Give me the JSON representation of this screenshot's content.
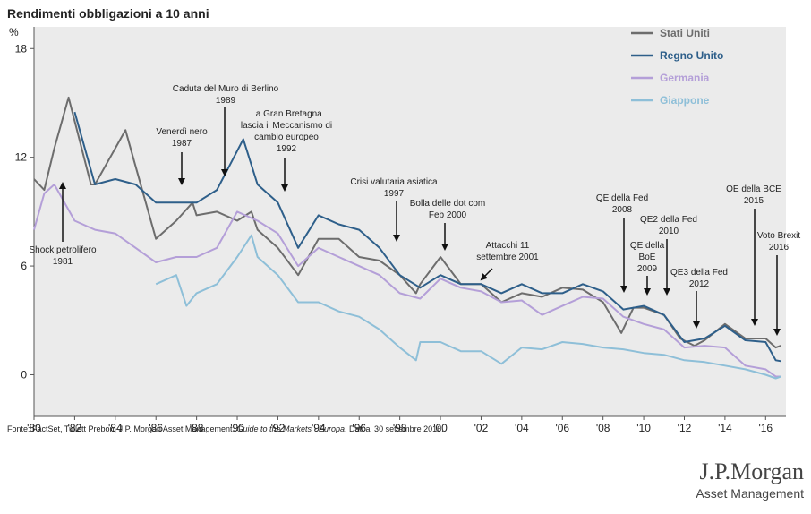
{
  "chart_data": {
    "type": "line",
    "title": "Rendimenti obbligazioni a 10 anni",
    "y_label": "%",
    "xlim": [
      1980,
      2017
    ],
    "ylim": [
      -2.3,
      19.2
    ],
    "yticks": [
      0,
      6,
      12,
      18
    ],
    "xticks": [
      {
        "value": 1980,
        "label": "'80"
      },
      {
        "value": 1982,
        "label": "'82"
      },
      {
        "value": 1984,
        "label": "'84"
      },
      {
        "value": 1986,
        "label": "'86"
      },
      {
        "value": 1988,
        "label": "'88"
      },
      {
        "value": 1990,
        "label": "'90"
      },
      {
        "value": 1992,
        "label": "'92"
      },
      {
        "value": 1994,
        "label": "'94"
      },
      {
        "value": 1996,
        "label": "'96"
      },
      {
        "value": 1998,
        "label": "'98"
      },
      {
        "value": 2000,
        "label": "'00"
      },
      {
        "value": 2002,
        "label": "'02"
      },
      {
        "value": 2004,
        "label": "'04"
      },
      {
        "value": 2006,
        "label": "'06"
      },
      {
        "value": 2008,
        "label": "'08"
      },
      {
        "value": 2010,
        "label": "'10"
      },
      {
        "value": 2012,
        "label": "'12"
      },
      {
        "value": 2014,
        "label": "'14"
      },
      {
        "value": 2016,
        "label": "'16"
      }
    ],
    "legend": "top-right",
    "series": [
      {
        "name": "Stati Uniti",
        "color": "#6d6d6d",
        "x": [
          1980,
          1980.5,
          1981,
          1981.7,
          1982,
          1982.8,
          1983,
          1984.5,
          1985,
          1986,
          1987,
          1987.8,
          1988,
          1989,
          1990,
          1990.7,
          1991,
          1992,
          1993,
          1994,
          1995,
          1996,
          1997,
          1998,
          1998.8,
          1999,
          2000,
          2001,
          2002,
          2003,
          2004,
          2005,
          2006,
          2007,
          2008,
          2008.9,
          2009.5,
          2010,
          2011,
          2011.8,
          2012.5,
          2013,
          2014,
          2015,
          2016,
          2016.5,
          2016.75
        ],
        "values": [
          10.8,
          10.2,
          12.5,
          15.3,
          14,
          10.5,
          10.5,
          13.5,
          11.5,
          7.5,
          8.5,
          9.5,
          8.8,
          9,
          8.5,
          9,
          8,
          7,
          5.5,
          7.5,
          7.5,
          6.5,
          6.3,
          5.5,
          4.5,
          5,
          6.5,
          5,
          5,
          4,
          4.5,
          4.3,
          4.8,
          4.7,
          4,
          2.3,
          3.7,
          3.7,
          3.3,
          2,
          1.6,
          1.9,
          2.8,
          2,
          2,
          1.5,
          1.6
        ]
      },
      {
        "name": "Regno Unito",
        "color": "#2e5f8a",
        "x": [
          1982,
          1983,
          1984,
          1985,
          1986,
          1987,
          1988,
          1989,
          1990.3,
          1991,
          1992,
          1993,
          1994,
          1995,
          1996,
          1997,
          1998,
          1999,
          2000,
          2001,
          2002,
          2003,
          2004,
          2005,
          2006,
          2007,
          2008,
          2009,
          2010,
          2011,
          2012,
          2013,
          2014,
          2015,
          2016,
          2016.5,
          2016.75
        ],
        "values": [
          14.5,
          10.5,
          10.8,
          10.5,
          9.5,
          9.5,
          9.5,
          10.2,
          13,
          10.5,
          9.5,
          7,
          8.8,
          8.3,
          8,
          7,
          5.5,
          4.8,
          5.5,
          5,
          5,
          4.5,
          5,
          4.5,
          4.5,
          5,
          4.6,
          3.6,
          3.8,
          3.3,
          1.8,
          2,
          2.7,
          1.9,
          1.8,
          0.8,
          0.75
        ]
      },
      {
        "name": "Germania",
        "color": "#b49fd8",
        "x": [
          1980,
          1980.5,
          1981,
          1982,
          1983,
          1984,
          1985,
          1986,
          1987,
          1988,
          1989,
          1990,
          1991,
          1992,
          1993,
          1994,
          1995,
          1996,
          1997,
          1998,
          1999,
          2000,
          2001,
          2002,
          2003,
          2004,
          2005,
          2006,
          2007,
          2008,
          2009,
          2010,
          2011,
          2012,
          2013,
          2014,
          2015,
          2016,
          2016.5,
          2016.75
        ],
        "values": [
          8,
          10,
          10.5,
          8.5,
          8,
          7.8,
          7,
          6.2,
          6.5,
          6.5,
          7,
          9,
          8.5,
          7.8,
          6,
          7,
          6.5,
          6,
          5.5,
          4.5,
          4.2,
          5.3,
          4.8,
          4.6,
          4,
          4.1,
          3.3,
          3.8,
          4.3,
          4.2,
          3.2,
          2.8,
          2.5,
          1.5,
          1.6,
          1.5,
          0.5,
          0.3,
          -0.1,
          -0.1
        ]
      },
      {
        "name": "Giappone",
        "color": "#8ebfd8",
        "x": [
          1986,
          1987,
          1987.5,
          1988,
          1989,
          1990,
          1990.7,
          1991,
          1992,
          1993,
          1994,
          1995,
          1996,
          1997,
          1998,
          1998.8,
          1999,
          2000,
          2001,
          2002,
          2003,
          2004,
          2005,
          2006,
          2007,
          2008,
          2009,
          2010,
          2011,
          2012,
          2013,
          2014,
          2015,
          2016,
          2016.5,
          2016.75
        ],
        "values": [
          5,
          5.5,
          3.8,
          4.5,
          5,
          6.5,
          7.7,
          6.5,
          5.5,
          4,
          4,
          3.5,
          3.2,
          2.5,
          1.5,
          0.8,
          1.8,
          1.8,
          1.3,
          1.3,
          0.6,
          1.5,
          1.4,
          1.8,
          1.7,
          1.5,
          1.4,
          1.2,
          1.1,
          0.8,
          0.7,
          0.5,
          0.3,
          0,
          -0.2,
          -0.1
        ]
      }
    ],
    "annotations": [
      {
        "lines": [
          "Shock petrolifero",
          "1981"
        ]
      },
      {
        "lines": [
          "Venerdì nero",
          "1987"
        ]
      },
      {
        "lines": [
          "Caduta del Muro di Berlino",
          "1989"
        ]
      },
      {
        "lines": [
          "La Gran Bretagna",
          "lascia il Meccanismo di",
          "cambio europeo",
          "1992"
        ]
      },
      {
        "lines": [
          "Crisi valutaria asiatica",
          "1997"
        ]
      },
      {
        "lines": [
          "Bolla delle dot com",
          "Feb 2000"
        ]
      },
      {
        "lines": [
          "Attacchi 11",
          "settembre 2001"
        ]
      },
      {
        "lines": [
          "QE della Fed",
          "2008"
        ]
      },
      {
        "lines": [
          "QE della",
          "BoE",
          "2009"
        ]
      },
      {
        "lines": [
          "QE2 della Fed",
          "2010"
        ]
      },
      {
        "lines": [
          "QE3 della Fed",
          "2012"
        ]
      },
      {
        "lines": [
          "QE della BCE",
          "2015"
        ]
      },
      {
        "lines": [
          "Voto Brexit",
          "2016"
        ]
      }
    ]
  },
  "footer": {
    "source": "Fonte: FactSet, Tullett Prebon, J.P. Morgan Asset Management. ",
    "source_italic": "Guide to the Markets - Europa",
    "source_end": ". Dati al 30 settembre 2016."
  },
  "logo": {
    "name": "J.P.Morgan",
    "subtitle": "Asset Management"
  }
}
